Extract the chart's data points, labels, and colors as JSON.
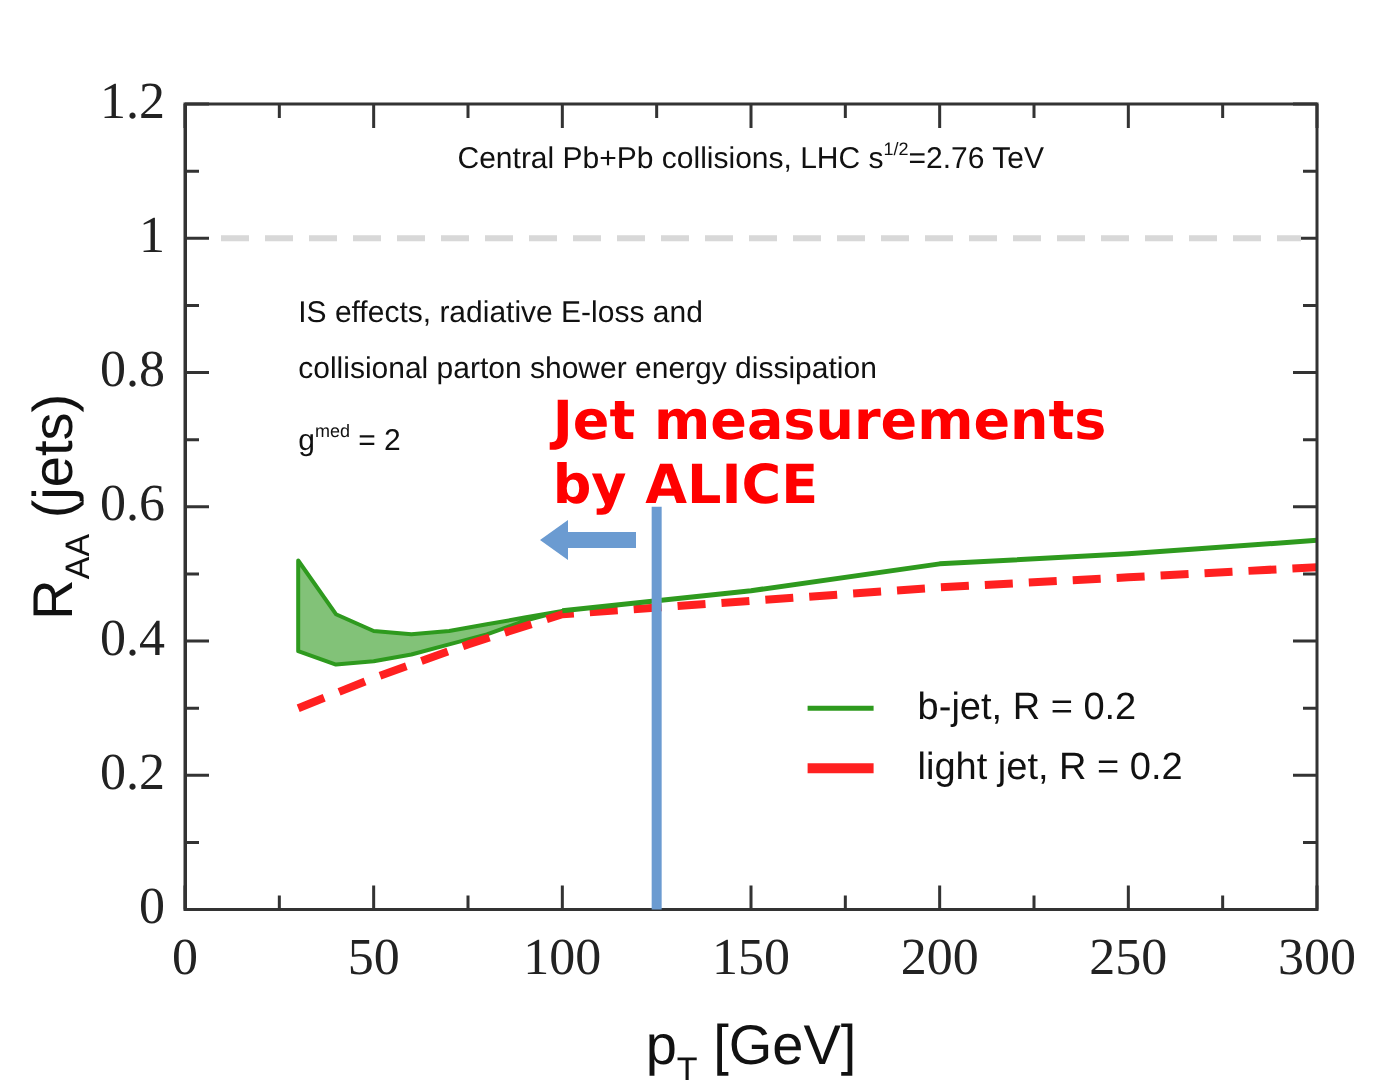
{
  "chart_data": {
    "type": "line",
    "xlabel": "p$_{T}$ [GeV]",
    "ylabel": "R$_{AA}$ (jets)",
    "x": [
      30,
      40,
      50,
      60,
      70,
      80,
      90,
      100,
      125,
      150,
      200,
      250,
      300
    ],
    "series": [
      {
        "name": "b-jet, R = 0.2",
        "color": "#2e9a1e",
        "values": [
          null,
          null,
          null,
          null,
          null,
          null,
          null,
          0.445,
          0.46,
          0.475,
          0.515,
          0.53,
          0.55
        ],
        "lower": [
          0.385,
          0.365,
          0.37,
          0.38,
          0.395,
          0.41,
          0.43,
          0.445,
          null,
          null,
          null,
          null,
          null
        ],
        "upper": [
          0.52,
          0.44,
          0.415,
          0.41,
          0.415,
          0.425,
          0.435,
          0.445,
          null,
          null,
          null,
          null,
          null
        ]
      },
      {
        "name": "light jet, R = 0.2",
        "color": "#ff2020",
        "line_style": "dashed",
        "x": [
          30,
          50,
          75,
          100,
          150,
          200,
          250,
          300
        ],
        "values": [
          0.3,
          0.345,
          0.395,
          0.44,
          0.46,
          0.48,
          0.495,
          0.51
        ]
      }
    ],
    "xlim": [
      0,
      300
    ],
    "xticks": [
      0,
      {
        "value": 25,
        "label": null
      },
      50,
      {
        "value": 75,
        "label": null
      },
      100,
      {
        "value": 125,
        "label": null
      },
      150,
      {
        "value": 175,
        "label": null
      },
      200,
      {
        "value": 225,
        "label": null
      },
      250,
      {
        "value": 275,
        "label": null
      },
      300
    ],
    "ylim": [
      0,
      1.2
    ],
    "yticks": [
      0,
      {
        "value": 0.1,
        "label": null
      },
      0.2,
      {
        "value": 0.3,
        "label": null
      },
      0.4,
      {
        "value": 0.5,
        "label": null
      },
      0.6,
      {
        "value": 0.7,
        "label": null
      },
      0.8,
      {
        "value": 0.9,
        "label": null
      },
      1,
      {
        "value": 1.1,
        "label": null
      },
      1.2
    ],
    "ref_lines": [
      {
        "axis": "y",
        "value": 1,
        "color": "#d8d8d8",
        "line_style": "dashed"
      },
      {
        "axis": "x",
        "value": 125,
        "color": "#6b9bd1"
      }
    ],
    "annotations": [
      "Central Pb+Pb collisions, LHC s$^{1/2}$=2.76 TeV",
      "IS effects, radiative E-loss and",
      "collisional parton shower energy dissipation",
      "g$^{med}$ = 2",
      {
        "text": "Jet measurements by ALICE",
        "x": 125,
        "y": 0.6
      }
    ],
    "legend": "bottom right",
    "grid": false,
    "marker": "none"
  }
}
